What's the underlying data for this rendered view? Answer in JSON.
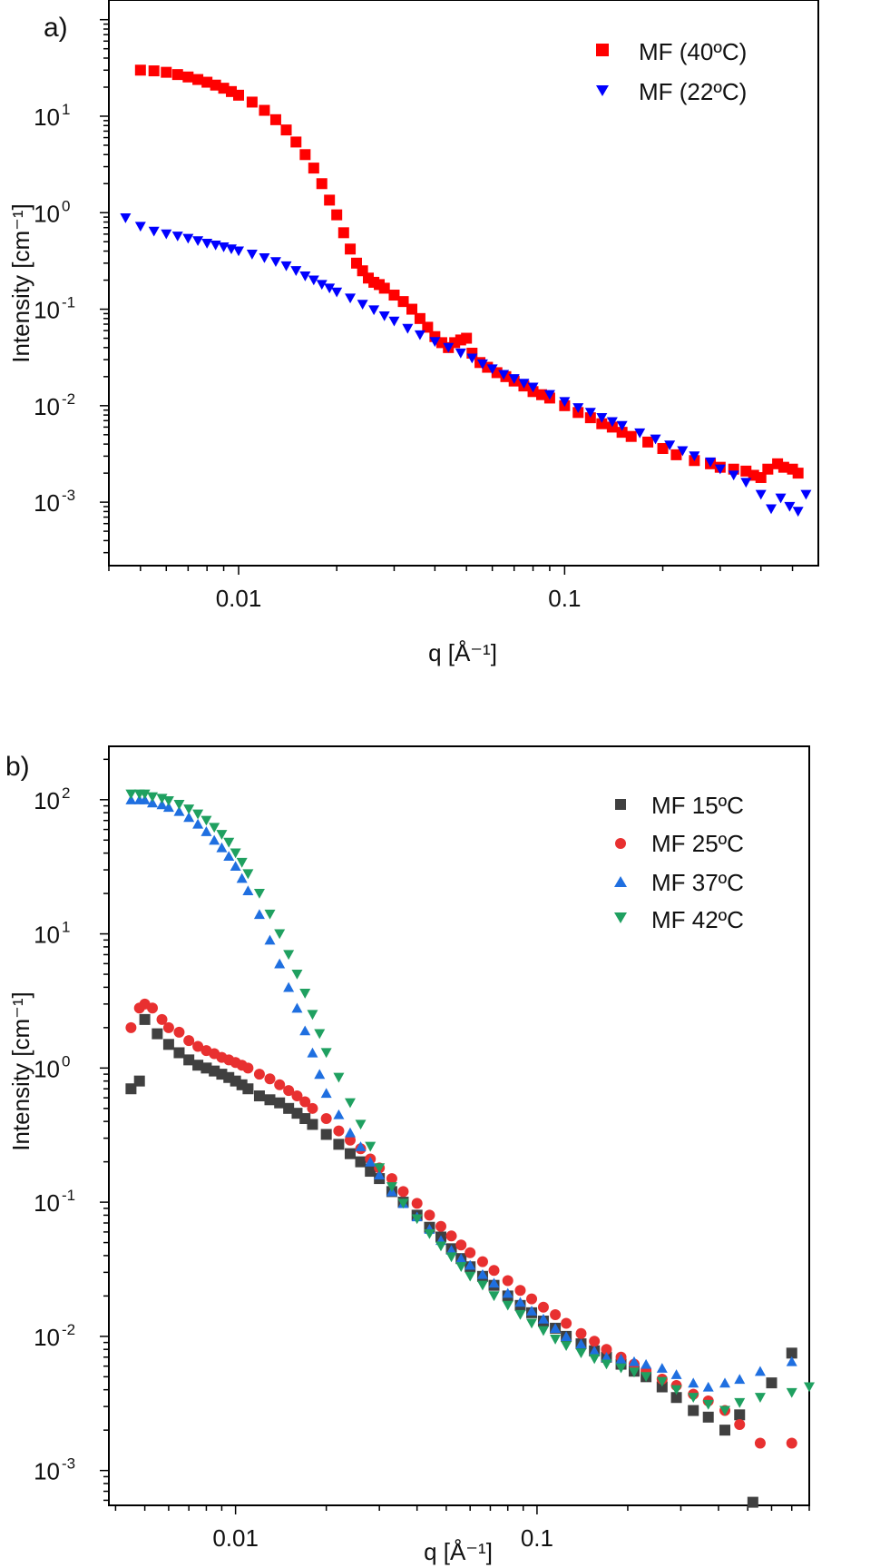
{
  "chart_data": [
    {
      "panel_label": "a)",
      "type": "scatter",
      "xscale": "log",
      "yscale": "log",
      "xlabel": "q [Å⁻¹]",
      "ylabel": "Intensity [cm⁻¹]",
      "xlim": [
        0.004,
        0.6
      ],
      "ylim": [
        0.00022,
        160
      ],
      "x_ticks": [
        {
          "v": 0.01,
          "label": "0.01"
        },
        {
          "v": 0.1,
          "label": "0.1"
        }
      ],
      "y_ticks": [
        {
          "v": 0.001,
          "base": "10",
          "exp": "-3"
        },
        {
          "v": 0.01,
          "base": "10",
          "exp": "-2"
        },
        {
          "v": 0.1,
          "base": "10",
          "exp": "-1"
        },
        {
          "v": 1,
          "base": "10",
          "exp": "0"
        },
        {
          "v": 10,
          "base": "10",
          "exp": "1"
        }
      ],
      "legend_position": "top-right",
      "series": [
        {
          "name": "MF (40ºC)",
          "color": "#ff0000",
          "marker": "square",
          "x": [
            0.005,
            0.0055,
            0.006,
            0.0065,
            0.007,
            0.0075,
            0.008,
            0.0085,
            0.009,
            0.0095,
            0.01,
            0.011,
            0.012,
            0.013,
            0.014,
            0.015,
            0.016,
            0.017,
            0.018,
            0.019,
            0.02,
            0.021,
            0.022,
            0.023,
            0.024,
            0.025,
            0.026,
            0.027,
            0.028,
            0.03,
            0.032,
            0.034,
            0.036,
            0.038,
            0.04,
            0.042,
            0.044,
            0.046,
            0.048,
            0.05,
            0.052,
            0.055,
            0.058,
            0.062,
            0.066,
            0.07,
            0.075,
            0.08,
            0.085,
            0.09,
            0.1,
            0.11,
            0.12,
            0.13,
            0.14,
            0.15,
            0.16,
            0.18,
            0.2,
            0.22,
            0.25,
            0.28,
            0.3,
            0.33,
            0.36,
            0.38,
            0.4,
            0.42,
            0.45,
            0.47,
            0.5,
            0.52
          ],
          "y": [
            30,
            29.5,
            28.5,
            27,
            25.5,
            24,
            22.5,
            21,
            19.5,
            18,
            16.5,
            14,
            11.5,
            9.2,
            7.2,
            5.4,
            4,
            2.9,
            2.0,
            1.35,
            0.95,
            0.62,
            0.42,
            0.3,
            0.25,
            0.21,
            0.19,
            0.18,
            0.165,
            0.14,
            0.12,
            0.1,
            0.08,
            0.065,
            0.052,
            0.045,
            0.04,
            0.045,
            0.048,
            0.05,
            0.035,
            0.028,
            0.025,
            0.022,
            0.02,
            0.018,
            0.016,
            0.014,
            0.013,
            0.012,
            0.01,
            0.0085,
            0.0075,
            0.0065,
            0.006,
            0.0053,
            0.0048,
            0.0042,
            0.0036,
            0.0031,
            0.0027,
            0.0025,
            0.0023,
            0.0022,
            0.0021,
            0.0019,
            0.0018,
            0.0022,
            0.0025,
            0.0023,
            0.0022,
            0.002
          ]
        },
        {
          "name": "MF (22ºC)",
          "color": "#0000ff",
          "marker": "triangle-down",
          "x": [
            0.0045,
            0.005,
            0.0055,
            0.006,
            0.0065,
            0.007,
            0.0075,
            0.008,
            0.0085,
            0.009,
            0.0095,
            0.01,
            0.011,
            0.012,
            0.013,
            0.014,
            0.015,
            0.016,
            0.017,
            0.018,
            0.019,
            0.02,
            0.022,
            0.024,
            0.026,
            0.028,
            0.03,
            0.033,
            0.036,
            0.04,
            0.044,
            0.048,
            0.052,
            0.056,
            0.06,
            0.065,
            0.07,
            0.075,
            0.08,
            0.09,
            0.1,
            0.11,
            0.12,
            0.13,
            0.14,
            0.15,
            0.17,
            0.19,
            0.21,
            0.23,
            0.25,
            0.28,
            0.3,
            0.33,
            0.36,
            0.4,
            0.43,
            0.46,
            0.49,
            0.52,
            0.55
          ],
          "y": [
            0.88,
            0.72,
            0.64,
            0.6,
            0.57,
            0.54,
            0.51,
            0.48,
            0.46,
            0.44,
            0.42,
            0.4,
            0.37,
            0.34,
            0.31,
            0.28,
            0.25,
            0.22,
            0.2,
            0.18,
            0.165,
            0.15,
            0.13,
            0.112,
            0.098,
            0.085,
            0.075,
            0.063,
            0.054,
            0.046,
            0.04,
            0.035,
            0.031,
            0.027,
            0.024,
            0.021,
            0.019,
            0.017,
            0.0155,
            0.013,
            0.011,
            0.0095,
            0.0085,
            0.0075,
            0.0068,
            0.0062,
            0.0052,
            0.0045,
            0.0039,
            0.0034,
            0.003,
            0.0026,
            0.0022,
            0.0019,
            0.0016,
            0.0012,
            0.00085,
            0.0011,
            0.0009,
            0.0008,
            0.0012
          ]
        }
      ]
    },
    {
      "panel_label": "b)",
      "type": "scatter",
      "xscale": "log",
      "yscale": "log",
      "xlabel": "q [Å⁻¹]",
      "ylabel": "Intensity [cm⁻¹]",
      "xlim": [
        0.0038,
        0.8
      ],
      "ylim": [
        0.00055,
        250
      ],
      "x_ticks": [
        {
          "v": 0.01,
          "label": "0.01"
        },
        {
          "v": 0.1,
          "label": "0.1"
        }
      ],
      "y_ticks": [
        {
          "v": 0.001,
          "base": "10",
          "exp": "-3"
        },
        {
          "v": 0.01,
          "base": "10",
          "exp": "-2"
        },
        {
          "v": 0.1,
          "base": "10",
          "exp": "-1"
        },
        {
          "v": 1,
          "base": "10",
          "exp": "0"
        },
        {
          "v": 10,
          "base": "10",
          "exp": "1"
        },
        {
          "v": 100,
          "base": "10",
          "exp": "2"
        }
      ],
      "legend_position": "top-right",
      "series": [
        {
          "name": "MF 15ºC",
          "color": "#404040",
          "marker": "square",
          "x": [
            0.0045,
            0.0048,
            0.005,
            0.0055,
            0.006,
            0.0065,
            0.007,
            0.0075,
            0.008,
            0.0085,
            0.009,
            0.0095,
            0.01,
            0.0105,
            0.011,
            0.012,
            0.013,
            0.014,
            0.015,
            0.016,
            0.017,
            0.018,
            0.02,
            0.022,
            0.024,
            0.026,
            0.028,
            0.03,
            0.033,
            0.036,
            0.04,
            0.044,
            0.048,
            0.052,
            0.056,
            0.06,
            0.066,
            0.072,
            0.08,
            0.088,
            0.096,
            0.105,
            0.115,
            0.125,
            0.14,
            0.155,
            0.17,
            0.19,
            0.21,
            0.23,
            0.26,
            0.29,
            0.33,
            0.37,
            0.42,
            0.47,
            0.52,
            0.6,
            0.7
          ],
          "y": [
            0.7,
            0.8,
            2.3,
            1.8,
            1.5,
            1.3,
            1.15,
            1.05,
            1.0,
            0.95,
            0.9,
            0.85,
            0.8,
            0.75,
            0.7,
            0.62,
            0.58,
            0.55,
            0.5,
            0.46,
            0.42,
            0.38,
            0.32,
            0.27,
            0.23,
            0.2,
            0.17,
            0.15,
            0.12,
            0.1,
            0.08,
            0.065,
            0.055,
            0.045,
            0.038,
            0.033,
            0.028,
            0.024,
            0.02,
            0.017,
            0.015,
            0.013,
            0.0115,
            0.01,
            0.0088,
            0.0078,
            0.007,
            0.0062,
            0.0055,
            0.005,
            0.0042,
            0.0035,
            0.0028,
            0.0025,
            0.002,
            0.0026,
            0.00058,
            0.0045,
            0.0075
          ]
        },
        {
          "name": "MF 25ºC",
          "color": "#e83030",
          "marker": "circle",
          "x": [
            0.0045,
            0.0048,
            0.005,
            0.0053,
            0.0057,
            0.006,
            0.0065,
            0.007,
            0.0075,
            0.008,
            0.0085,
            0.009,
            0.0095,
            0.01,
            0.0105,
            0.011,
            0.012,
            0.013,
            0.014,
            0.015,
            0.016,
            0.017,
            0.018,
            0.02,
            0.022,
            0.024,
            0.026,
            0.028,
            0.03,
            0.033,
            0.036,
            0.04,
            0.044,
            0.048,
            0.052,
            0.056,
            0.06,
            0.066,
            0.072,
            0.08,
            0.088,
            0.096,
            0.105,
            0.115,
            0.125,
            0.14,
            0.155,
            0.17,
            0.19,
            0.21,
            0.23,
            0.26,
            0.29,
            0.33,
            0.37,
            0.42,
            0.47,
            0.55,
            0.7
          ],
          "y": [
            2.0,
            2.8,
            3.0,
            2.8,
            2.3,
            2.0,
            1.85,
            1.6,
            1.45,
            1.35,
            1.28,
            1.2,
            1.15,
            1.1,
            1.05,
            1.0,
            0.9,
            0.83,
            0.75,
            0.68,
            0.62,
            0.56,
            0.5,
            0.42,
            0.34,
            0.29,
            0.25,
            0.21,
            0.18,
            0.15,
            0.12,
            0.098,
            0.08,
            0.066,
            0.056,
            0.048,
            0.042,
            0.036,
            0.031,
            0.026,
            0.022,
            0.019,
            0.0165,
            0.0145,
            0.0125,
            0.0105,
            0.0092,
            0.008,
            0.007,
            0.0062,
            0.0056,
            0.0048,
            0.0043,
            0.0037,
            0.0033,
            0.0028,
            0.0022,
            0.0016,
            0.0016
          ]
        },
        {
          "name": "MF 37ºC",
          "color": "#1f6fe0",
          "marker": "triangle-up",
          "x": [
            0.0045,
            0.0048,
            0.005,
            0.0053,
            0.0057,
            0.006,
            0.0065,
            0.007,
            0.0075,
            0.008,
            0.0085,
            0.009,
            0.0095,
            0.01,
            0.0105,
            0.011,
            0.012,
            0.013,
            0.014,
            0.015,
            0.016,
            0.017,
            0.018,
            0.019,
            0.02,
            0.022,
            0.024,
            0.026,
            0.028,
            0.03,
            0.033,
            0.036,
            0.04,
            0.044,
            0.048,
            0.052,
            0.056,
            0.06,
            0.066,
            0.072,
            0.08,
            0.088,
            0.096,
            0.105,
            0.115,
            0.125,
            0.14,
            0.155,
            0.17,
            0.19,
            0.21,
            0.23,
            0.26,
            0.29,
            0.33,
            0.37,
            0.42,
            0.47,
            0.55,
            0.7
          ],
          "y": [
            100,
            100,
            100,
            95,
            92,
            88,
            82,
            74,
            66,
            58,
            50,
            44,
            38,
            32,
            26,
            21,
            14,
            9,
            6,
            4,
            2.8,
            1.9,
            1.3,
            0.9,
            0.65,
            0.45,
            0.33,
            0.26,
            0.2,
            0.16,
            0.12,
            0.098,
            0.078,
            0.063,
            0.052,
            0.044,
            0.038,
            0.034,
            0.029,
            0.025,
            0.021,
            0.018,
            0.0155,
            0.0135,
            0.0115,
            0.01,
            0.0088,
            0.0078,
            0.007,
            0.0068,
            0.0065,
            0.0062,
            0.0058,
            0.0052,
            0.0045,
            0.0042,
            0.0045,
            0.0048,
            0.0055,
            0.0065
          ]
        },
        {
          "name": "MF 42ºC",
          "color": "#1fa060",
          "marker": "triangle-down",
          "x": [
            0.0045,
            0.0048,
            0.005,
            0.0053,
            0.0057,
            0.006,
            0.0065,
            0.007,
            0.0075,
            0.008,
            0.0085,
            0.009,
            0.0095,
            0.01,
            0.0105,
            0.011,
            0.012,
            0.013,
            0.014,
            0.015,
            0.016,
            0.017,
            0.018,
            0.019,
            0.02,
            0.022,
            0.024,
            0.026,
            0.028,
            0.03,
            0.033,
            0.036,
            0.04,
            0.044,
            0.048,
            0.052,
            0.056,
            0.06,
            0.066,
            0.072,
            0.08,
            0.088,
            0.096,
            0.105,
            0.115,
            0.125,
            0.14,
            0.155,
            0.17,
            0.19,
            0.21,
            0.23,
            0.26,
            0.29,
            0.33,
            0.37,
            0.42,
            0.47,
            0.55,
            0.7,
            0.8
          ],
          "y": [
            110,
            110,
            110,
            105,
            102,
            98,
            92,
            85,
            78,
            70,
            62,
            55,
            48,
            40,
            34,
            28,
            20,
            14,
            10,
            7,
            5,
            3.6,
            2.5,
            1.8,
            1.3,
            0.85,
            0.55,
            0.38,
            0.26,
            0.18,
            0.13,
            0.098,
            0.075,
            0.058,
            0.047,
            0.039,
            0.033,
            0.028,
            0.024,
            0.02,
            0.017,
            0.0145,
            0.0125,
            0.011,
            0.0095,
            0.0085,
            0.0075,
            0.0068,
            0.0062,
            0.0058,
            0.0054,
            0.005,
            0.0046,
            0.004,
            0.0035,
            0.0031,
            0.0028,
            0.0032,
            0.0035,
            0.0038,
            0.0042
          ]
        }
      ]
    }
  ]
}
